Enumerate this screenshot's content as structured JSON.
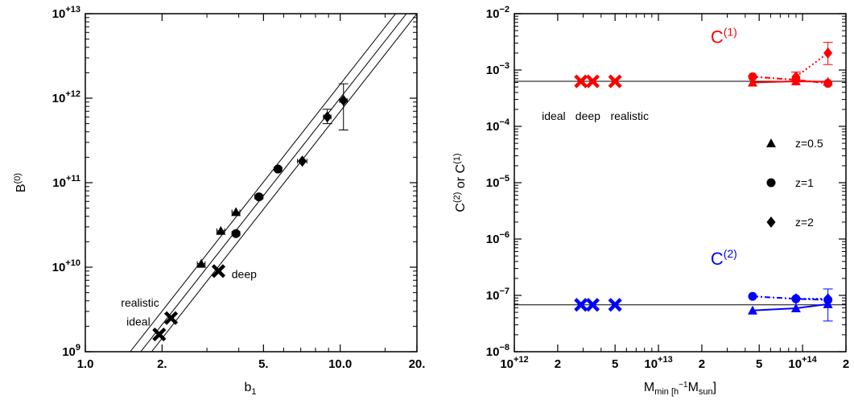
{
  "chart_data": [
    {
      "type": "scatter",
      "title": "",
      "xlabel": "b",
      "xlabel_sub": "1",
      "ylabel": "B",
      "ylabel_sup": "(0)",
      "x_scale": "log",
      "y_scale": "log",
      "xlim": [
        1.0,
        20.0
      ],
      "ylim": [
        1000000000.0,
        10000000000000.0
      ],
      "x_ticks": [
        {
          "v": 1.0,
          "label": "1.0"
        },
        {
          "v": 2.0,
          "label": "2."
        },
        {
          "v": 5.0,
          "label": "5."
        },
        {
          "v": 10.0,
          "label": "10.0"
        },
        {
          "v": 20.0,
          "label": "20."
        }
      ],
      "y_ticks": [
        {
          "v": 1000000000.0,
          "base": "10",
          "exp": "9"
        },
        {
          "v": 10000000000.0,
          "base": "10",
          "exp": "+10"
        },
        {
          "v": 100000000000.0,
          "base": "10",
          "exp": "+11"
        },
        {
          "v": 1000000000000.0,
          "base": "10",
          "exp": "+12"
        },
        {
          "v": 10000000000000.0,
          "base": "10",
          "exp": "+13"
        }
      ],
      "grid": false,
      "series": [
        {
          "marker": "triangle",
          "points": [
            {
              "x": 2.85,
              "y": 11000000000.0,
              "xerr": 0.1
            },
            {
              "x": 3.4,
              "y": 27000000000.0,
              "xerr": 0.12
            },
            {
              "x": 3.9,
              "y": 45000000000.0,
              "xerr": 0.14
            }
          ]
        },
        {
          "marker": "circle",
          "points": [
            {
              "x": 3.9,
              "y": 25000000000.0,
              "xerr": 0.14
            },
            {
              "x": 4.8,
              "y": 68000000000.0,
              "xerr": 0.18
            },
            {
              "x": 5.7,
              "y": 145000000000.0,
              "xerr": 0.2
            }
          ]
        },
        {
          "marker": "diamond",
          "points": [
            {
              "x": 7.1,
              "y": 180000000000.0,
              "xerr": 0.3
            },
            {
              "x": 8.9,
              "y": 600000000000.0,
              "xerr": 0.3,
              "ylo": 500000000000.0,
              "yhi": 740000000000.0
            },
            {
              "x": 10.3,
              "y": 940000000000.0,
              "xerr": 0.35,
              "ylo": 420000000000.0,
              "yhi": 1480000000000.0
            }
          ]
        },
        {
          "marker": "x",
          "points": [
            {
              "x": 1.95,
              "y": 1600000000.0
            },
            {
              "x": 2.17,
              "y": 2500000000.0
            },
            {
              "x": 3.33,
              "y": 9000000000.0
            }
          ]
        }
      ],
      "lines": [
        {
          "a": [
            1.5,
            1000000000.0
          ],
          "b": [
            16.5,
            10000000000000.0
          ]
        },
        {
          "a": [
            1.65,
            1000000000.0
          ],
          "b": [
            18.2,
            10000000000000.0
          ]
        },
        {
          "a": [
            1.82,
            1000000000.0
          ],
          "b": [
            20.0,
            10000000000000.0
          ]
        }
      ],
      "annotations": [
        {
          "text": "realistic",
          "x": 1.38,
          "y": 3400000000.0
        },
        {
          "text": "ideal",
          "x": 1.45,
          "y": 2050000000.0
        },
        {
          "text": "deep",
          "x": 3.75,
          "y": 7400000000.0
        }
      ]
    },
    {
      "type": "line",
      "title": "",
      "xlabel": "M",
      "xlabel_sub": "min [h",
      "xlabel_sup": "−1",
      "xlabel_mid": "M",
      "xlabel_sub2": "sun",
      "xlabel_tail": "]",
      "ylabel_main": "C",
      "ylabel_sup1": "(2)",
      "ylabel_mid": " or C",
      "ylabel_sup2": "(1)",
      "x_scale": "log",
      "y_scale": "log",
      "xlim": [
        1000000000000.0,
        200000000000000.0
      ],
      "ylim": [
        1e-08,
        0.01
      ],
      "x_ticks": [
        {
          "v": 1000000000000.0,
          "base": "10",
          "exp": "+12"
        },
        {
          "v": 2000000000000.0,
          "label": "2"
        },
        {
          "v": 5000000000000.0,
          "label": "5"
        },
        {
          "v": 10000000000000.0,
          "base": "10",
          "exp": "+13"
        },
        {
          "v": 20000000000000.0,
          "label": "2"
        },
        {
          "v": 50000000000000.0,
          "label": "5"
        },
        {
          "v": 100000000000000.0,
          "base": "10",
          "exp": "+14"
        },
        {
          "v": 200000000000000.0,
          "label": "2"
        }
      ],
      "y_ticks": [
        {
          "v": 1e-08,
          "base": "10",
          "exp": "−8"
        },
        {
          "v": 1e-07,
          "base": "10",
          "exp": "−7"
        },
        {
          "v": 1e-06,
          "base": "10",
          "exp": "−6"
        },
        {
          "v": 1e-05,
          "base": "10",
          "exp": "−5"
        },
        {
          "v": 0.0001,
          "base": "10",
          "exp": "−4"
        },
        {
          "v": 0.001,
          "base": "10",
          "exp": "−3"
        },
        {
          "v": 0.01,
          "base": "10",
          "exp": "−2"
        }
      ],
      "grid": false,
      "hlines": [
        0.00063,
        6.8e-08
      ],
      "series": [
        {
          "color": "#ff0000",
          "marker": "x",
          "points": [
            {
              "x": 2900000000000.0,
              "y": 0.00063
            },
            {
              "x": 3500000000000.0,
              "y": 0.00063
            },
            {
              "x": 5000000000000.0,
              "y": 0.00063
            }
          ]
        },
        {
          "color": "#0000ff",
          "marker": "x",
          "points": [
            {
              "x": 2900000000000.0,
              "y": 6.8e-08
            },
            {
              "x": 3500000000000.0,
              "y": 6.8e-08
            },
            {
              "x": 5000000000000.0,
              "y": 6.8e-08
            }
          ]
        },
        {
          "color": "#ff0000",
          "marker": "triangle",
          "line": "solid",
          "points": [
            {
              "x": 45000000000000.0,
              "y": 0.0006
            },
            {
              "x": 90000000000000.0,
              "y": 0.00063
            },
            {
              "x": 150000000000000.0,
              "y": 0.00062
            }
          ]
        },
        {
          "color": "#ff0000",
          "marker": "circle",
          "line": "dashdot",
          "points": [
            {
              "x": 45000000000000.0,
              "y": 0.00076
            },
            {
              "x": 90000000000000.0,
              "y": 0.00067
            },
            {
              "x": 150000000000000.0,
              "y": 0.00058
            }
          ]
        },
        {
          "color": "#ff0000",
          "marker": "diamond",
          "line": "dotted",
          "points": [
            {
              "x": 90000000000000.0,
              "y": 0.00076,
              "ylo": 0.00063,
              "yhi": 0.00092
            },
            {
              "x": 150000000000000.0,
              "y": 0.002,
              "ylo": 0.00125,
              "yhi": 0.0031
            }
          ]
        },
        {
          "color": "#0000ff",
          "marker": "triangle",
          "line": "solid",
          "points": [
            {
              "x": 45000000000000.0,
              "y": 5.4e-08
            },
            {
              "x": 90000000000000.0,
              "y": 5.9e-08
            },
            {
              "x": 150000000000000.0,
              "y": 7e-08,
              "ylo": 3.5e-08,
              "yhi": 1.3e-07
            }
          ]
        },
        {
          "color": "#0000ff",
          "marker": "circle",
          "line": "dashdot",
          "points": [
            {
              "x": 45000000000000.0,
              "y": 9.6e-08
            },
            {
              "x": 90000000000000.0,
              "y": 8.7e-08
            },
            {
              "x": 150000000000000.0,
              "y": 8.3e-08
            }
          ]
        },
        {
          "color": "#0000ff",
          "marker": "diamond",
          "line": "dotted",
          "points": [
            {
              "x": 90000000000000.0,
              "y": 8.7e-08
            },
            {
              "x": 150000000000000.0,
              "y": 8.7e-08
            }
          ]
        }
      ],
      "annotations": [
        {
          "text": "ideal",
          "x": 1550000000000.0,
          "y": 0.00013
        },
        {
          "text": "deep",
          "x": 2650000000000.0,
          "y": 0.00013
        },
        {
          "text": "realistic",
          "x": 4650000000000.0,
          "y": 0.00013
        }
      ],
      "big_labels": [
        {
          "base": "C",
          "sup": "(1)",
          "color": "#ff0000",
          "x": 23000000000000.0,
          "y": 0.003
        },
        {
          "base": "C",
          "sup": "(2)",
          "color": "#0000ff",
          "x": 23000000000000.0,
          "y": 3.5e-07
        }
      ],
      "legend": {
        "placement": "right",
        "entries": [
          {
            "marker": "triangle",
            "label": "z=0.5"
          },
          {
            "marker": "circle",
            "label": "z=1"
          },
          {
            "marker": "diamond",
            "label": "z=2"
          }
        ]
      }
    }
  ]
}
